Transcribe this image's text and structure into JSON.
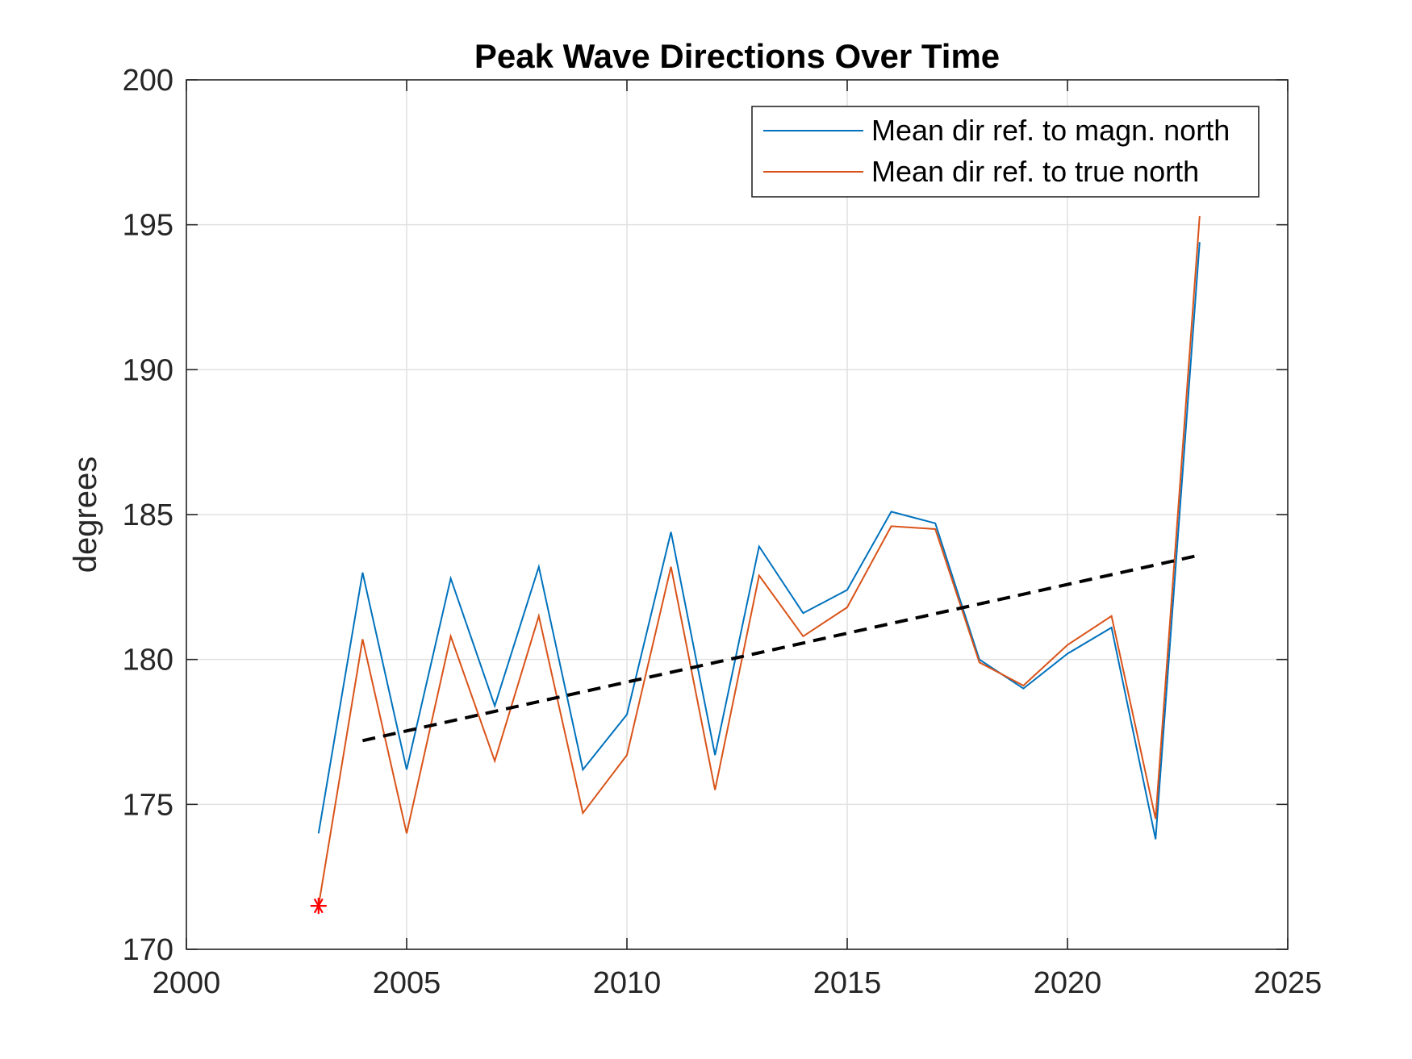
{
  "chart_data": {
    "type": "line",
    "title": "Peak Wave Directions Over Time",
    "xlabel": "",
    "ylabel": "degrees",
    "xlim": [
      2000,
      2025
    ],
    "ylim": [
      170,
      200
    ],
    "xticks": [
      2000,
      2005,
      2010,
      2015,
      2020,
      2025
    ],
    "yticks": [
      170,
      175,
      180,
      185,
      190,
      195,
      200
    ],
    "grid": true,
    "legend_position": "top-right",
    "x": [
      2003,
      2004,
      2005,
      2006,
      2007,
      2008,
      2009,
      2010,
      2011,
      2012,
      2013,
      2014,
      2015,
      2016,
      2017,
      2018,
      2019,
      2020,
      2021,
      2022,
      2023
    ],
    "series": [
      {
        "name": "Mean dir ref. to magn. north",
        "color": "#0072BD",
        "values": [
          174.0,
          183.0,
          176.2,
          182.8,
          178.4,
          183.2,
          176.2,
          178.1,
          184.4,
          176.7,
          183.9,
          181.6,
          182.4,
          185.1,
          184.7,
          180.0,
          179.0,
          180.2,
          181.1,
          173.8,
          194.4
        ]
      },
      {
        "name": "Mean dir ref. to true north",
        "color": "#D95319",
        "values": [
          171.5,
          180.7,
          174.0,
          180.8,
          176.5,
          181.5,
          174.7,
          176.7,
          183.2,
          175.5,
          182.9,
          180.8,
          181.8,
          184.6,
          184.5,
          179.9,
          179.1,
          180.5,
          181.5,
          174.5,
          195.3
        ]
      }
    ],
    "trendline": {
      "x": [
        2004,
        2023
      ],
      "y": [
        177.2,
        183.6
      ],
      "color": "#000000",
      "style": "dashed"
    },
    "marker": {
      "x": 2003,
      "y": 171.5,
      "symbol": "*",
      "color": "#FF0000"
    }
  }
}
